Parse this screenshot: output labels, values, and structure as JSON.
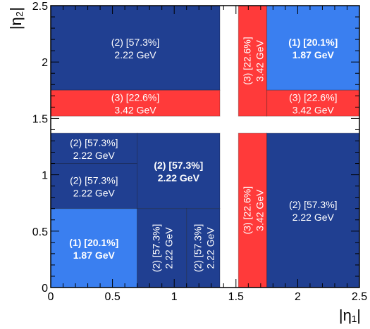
{
  "chart_data": {
    "type": "heatmap",
    "xlabel": "|η₁|",
    "ylabel": "|η₂|",
    "xlim": [
      0,
      2.5
    ],
    "ylim": [
      0,
      2.5
    ],
    "x_ticks": [
      "0",
      "0.5",
      "1",
      "1.5",
      "2",
      "2.5"
    ],
    "y_ticks": [
      "0",
      "0.5",
      "1",
      "1.5",
      "2",
      "2.5"
    ],
    "colors": {
      "category_1": "#3a7ff0",
      "category_2": "#203f91",
      "category_3": "#ff3a3a",
      "gap": "#ffffff",
      "text": "#ffffff"
    },
    "cells": [
      {
        "x0": 0.0,
        "x1": 1.37,
        "y0": 1.75,
        "y1": 2.5,
        "category": 2,
        "label": "(2) [57.3%]",
        "sublabel": "2.22 GeV",
        "vertical": false,
        "bold": false
      },
      {
        "x0": 0.0,
        "x1": 1.37,
        "y0": 1.52,
        "y1": 1.75,
        "category": 3,
        "label": "(3) [22.6%]",
        "sublabel": "3.42 GeV",
        "vertical": false,
        "bold": false
      },
      {
        "x0": 1.52,
        "x1": 1.75,
        "y0": 1.52,
        "y1": 2.5,
        "category": 3,
        "label": "(3) [22.6%]",
        "sublabel": "3.42 GeV",
        "vertical": true,
        "bold": false
      },
      {
        "x0": 1.75,
        "x1": 2.5,
        "y0": 1.75,
        "y1": 2.5,
        "category": 1,
        "label": "(1) [20.1%]",
        "sublabel": "1.87 GeV",
        "vertical": false,
        "bold": true
      },
      {
        "x0": 1.75,
        "x1": 2.5,
        "y0": 1.52,
        "y1": 1.75,
        "category": 3,
        "label": "(3) [22.6%]",
        "sublabel": "3.42 GeV",
        "vertical": false,
        "bold": false
      },
      {
        "x0": 0.0,
        "x1": 0.7,
        "y0": 1.1,
        "y1": 1.37,
        "category": 2,
        "label": "(2) [57.3%]",
        "sublabel": "2.22 GeV",
        "vertical": false,
        "bold": false
      },
      {
        "x0": 0.0,
        "x1": 0.7,
        "y0": 0.7,
        "y1": 1.1,
        "category": 2,
        "label": "(2) [57.3%]",
        "sublabel": "2.22 GeV",
        "vertical": false,
        "bold": false
      },
      {
        "x0": 0.7,
        "x1": 1.37,
        "y0": 0.7,
        "y1": 1.37,
        "category": 2,
        "label": "(2) [57.3%]",
        "sublabel": "2.22 GeV",
        "vertical": false,
        "bold": true
      },
      {
        "x0": 0.0,
        "x1": 0.7,
        "y0": 0.0,
        "y1": 0.7,
        "category": 1,
        "label": "(1) [20.1%]",
        "sublabel": "1.87 GeV",
        "vertical": false,
        "bold": true
      },
      {
        "x0": 0.7,
        "x1": 1.1,
        "y0": 0.0,
        "y1": 0.7,
        "category": 2,
        "label": "(2) [57.3%]",
        "sublabel": "2.22 GeV",
        "vertical": true,
        "bold": false
      },
      {
        "x0": 1.1,
        "x1": 1.37,
        "y0": 0.0,
        "y1": 0.7,
        "category": 2,
        "label": "(2) [57.3%]",
        "sublabel": "2.22 GeV",
        "vertical": true,
        "bold": false
      },
      {
        "x0": 1.52,
        "x1": 1.75,
        "y0": 0.0,
        "y1": 1.37,
        "category": 3,
        "label": "(3) [22.6%]",
        "sublabel": "3.42 GeV",
        "vertical": true,
        "bold": false
      },
      {
        "x0": 1.75,
        "x1": 2.5,
        "y0": 0.0,
        "y1": 1.37,
        "category": 2,
        "label": "(2) [57.3%]",
        "sublabel": "2.22 GeV",
        "vertical": false,
        "bold": false
      }
    ]
  }
}
